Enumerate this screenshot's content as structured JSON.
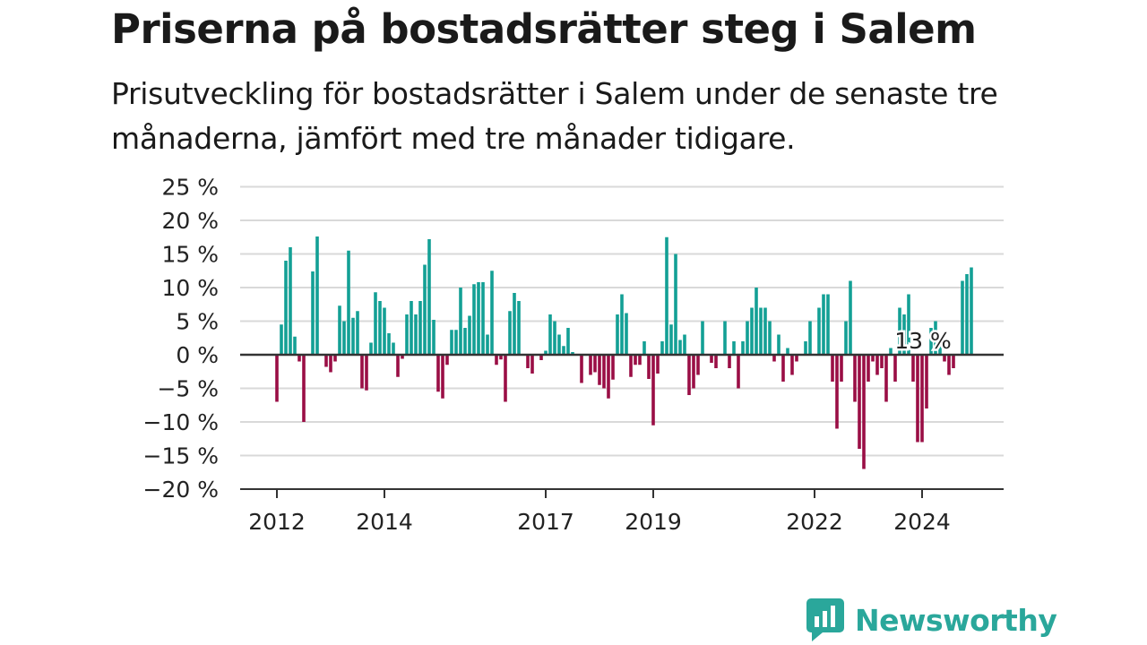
{
  "title": "Priserna på bostadsrätter steg i Salem",
  "subtitle": "Prisutveckling för bostadsrätter i Salem under de senaste tre månaderna, jämfört med tre månader tidigare.",
  "brand": {
    "name": "Newsworthy",
    "icon": "newsworthy-chart-logo-icon",
    "color": "#2aa79b"
  },
  "chart_data": {
    "type": "bar",
    "x_start": "2011-09",
    "x_step": "month",
    "x_ticks": [
      {
        "label": "2012",
        "x": "2012-01"
      },
      {
        "label": "2014",
        "x": "2014-01"
      },
      {
        "label": "2017",
        "x": "2017-01"
      },
      {
        "label": "2019",
        "x": "2019-01"
      },
      {
        "label": "2022",
        "x": "2022-01"
      },
      {
        "label": "2024",
        "x": "2024-01"
      }
    ],
    "ylim": [
      -20,
      25
    ],
    "y_ticks": [
      "−20 %",
      "−15 %",
      "−10 %",
      "−5 %",
      "0 %",
      "5 %",
      "10 %",
      "15 %",
      "20 %",
      "25 %"
    ],
    "y_tick_values": [
      -20,
      -15,
      -10,
      -5,
      0,
      5,
      10,
      15,
      20,
      25
    ],
    "colors": {
      "positive": "#13a095",
      "negative": "#9a0e45",
      "grid": "#d9d9d9",
      "axis": "#333333"
    },
    "annotation": {
      "label": "13 %",
      "x": "2024-08"
    },
    "grid": true,
    "values": [
      null,
      null,
      null,
      null,
      -7,
      4.5,
      14,
      16,
      2.7,
      -1,
      -10,
      null,
      12.4,
      17.6,
      null,
      -1.8,
      -2.6,
      -1,
      7.3,
      5,
      15.5,
      5.5,
      6.5,
      -5,
      -5.3,
      1.8,
      9.3,
      8,
      7,
      3.2,
      1.8,
      -3.3,
      -0.6,
      6,
      8,
      6,
      8,
      13.4,
      17.2,
      5.2,
      -5.5,
      -6.5,
      -1.5,
      3.7,
      3.7,
      10,
      4,
      5.8,
      10.5,
      10.8,
      10.8,
      3,
      12.5,
      -1.5,
      -0.7,
      -7,
      6.5,
      9.2,
      8,
      null,
      -2,
      -2.8,
      null,
      -0.8,
      0.6,
      6,
      5,
      3,
      1.3,
      4,
      0.4,
      null,
      -4.2,
      null,
      -3,
      -2.6,
      -4.5,
      -5,
      -6.5,
      -3.7,
      6,
      9,
      6.2,
      -3.3,
      -1.5,
      -1.5,
      2,
      -3.6,
      -10.5,
      -2.8,
      2,
      17.5,
      4.5,
      15,
      2.2,
      3,
      -6,
      -5,
      -3,
      5,
      null,
      -1.2,
      -2,
      null,
      5,
      -2,
      2,
      -5,
      2,
      5,
      7,
      10,
      7,
      7,
      5,
      -1,
      3,
      -4,
      1,
      -3,
      -1,
      null,
      2,
      5,
      null,
      7,
      9,
      9,
      -4,
      -11,
      -4,
      5,
      11,
      -7,
      -14,
      -17,
      -4,
      -1,
      -3,
      -2,
      -7,
      1,
      -4,
      7,
      6,
      9,
      -4,
      -13,
      -13,
      -8,
      4,
      5,
      3,
      -1,
      -3,
      -2,
      null,
      11,
      12,
      13
    ]
  }
}
